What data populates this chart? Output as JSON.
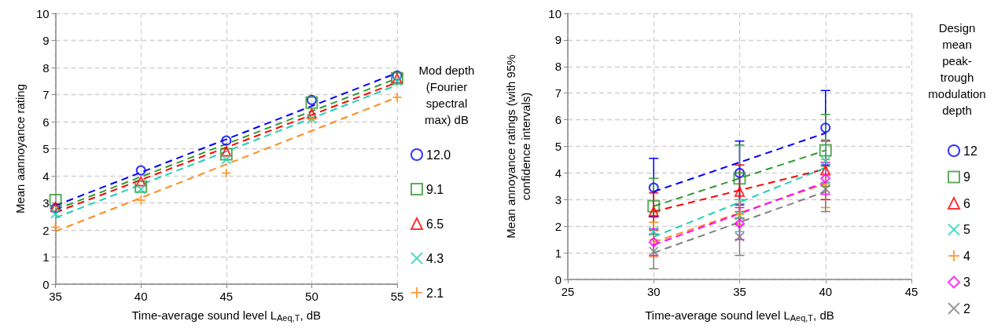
{
  "chart_data": [
    {
      "type": "scatter",
      "xlabel": "Time-average sound level L$_{Aeq,T}$, dB",
      "ylabel": "Mean aannoyance rating",
      "legend_title": "Mod depth (Fourier spectral max) dB",
      "x": [
        35,
        40,
        45,
        50,
        55
      ],
      "xlim": [
        35,
        55
      ],
      "xticks": [
        35,
        40,
        45,
        50,
        55
      ],
      "ylim": [
        0,
        10
      ],
      "yticks": [
        0,
        1,
        2,
        3,
        4,
        5,
        6,
        7,
        8,
        9,
        10
      ],
      "grid": true,
      "legend": "right",
      "series": [
        {
          "name": "12.0",
          "color": "#0000ff",
          "marker": "circle",
          "values": [
            2.8,
            4.2,
            5.3,
            6.8,
            7.7
          ]
        },
        {
          "name": "9.1",
          "color": "#339933",
          "marker": "square",
          "values": [
            3.1,
            3.6,
            4.8,
            6.7,
            7.6
          ]
        },
        {
          "name": "6.5",
          "color": "#ff0000",
          "marker": "triangle",
          "values": [
            2.85,
            3.8,
            4.9,
            6.3,
            7.6
          ]
        },
        {
          "name": "4.3",
          "color": "#1fd1b3",
          "marker": "cross",
          "values": [
            2.6,
            3.5,
            4.6,
            6.1,
            7.5
          ]
        },
        {
          "name": "2.1",
          "color": "#ff8c1a",
          "marker": "plus",
          "values": [
            2.1,
            3.1,
            4.1,
            6.1,
            6.9
          ]
        },
        {
          "type": "line",
          "color": "#0000ff",
          "line_style": "dashed",
          "x": [
            35,
            55
          ],
          "values": [
            2.9,
            7.8
          ]
        },
        {
          "type": "line",
          "color": "#339933",
          "line_style": "dashed",
          "x": [
            35,
            55
          ],
          "values": [
            2.75,
            7.6
          ]
        },
        {
          "type": "line",
          "color": "#ff0000",
          "line_style": "dashed",
          "x": [
            35,
            55
          ],
          "values": [
            2.65,
            7.45
          ]
        },
        {
          "type": "line",
          "color": "#1fd1b3",
          "line_style": "dashed",
          "x": [
            35,
            55
          ],
          "values": [
            2.45,
            7.35
          ]
        },
        {
          "type": "line",
          "color": "#ff8c1a",
          "line_style": "dashed",
          "x": [
            35,
            55
          ],
          "values": [
            1.95,
            6.9
          ]
        }
      ]
    },
    {
      "type": "scatter",
      "xlabel": "Time-average sound level L$_{Aeq,T}$, dB",
      "ylabel": "Mean annoyance ratings (with 95% confidence intervals)",
      "legend_title": "Design mean peak-trough modulation depth",
      "x": [
        30,
        35,
        40
      ],
      "xlim": [
        25,
        45
      ],
      "xticks": [
        25,
        30,
        35,
        40,
        45
      ],
      "ylim": [
        0,
        10
      ],
      "yticks": [
        0,
        1,
        2,
        3,
        4,
        5,
        6,
        7,
        8,
        9,
        10
      ],
      "grid": true,
      "legend": "right",
      "series": [
        {
          "name": "12",
          "color": "#0000ff",
          "marker": "circle",
          "values": [
            3.45,
            4.0,
            5.7
          ],
          "errors": [
            1.1,
            1.2,
            1.4
          ]
        },
        {
          "name": "9",
          "color": "#339933",
          "marker": "square",
          "values": [
            2.75,
            3.8,
            4.85
          ],
          "errors": [
            1.05,
            1.25,
            1.35
          ]
        },
        {
          "name": "6",
          "color": "#ff0000",
          "marker": "triangle",
          "values": [
            2.55,
            3.3,
            4.1
          ],
          "errors": [
            0.7,
            1.0,
            1.1
          ]
        },
        {
          "name": "5",
          "color": "#1fd1b3",
          "marker": "cross",
          "values": [
            1.8,
            2.4,
            4.45
          ],
          "errors": [
            null,
            0.6,
            0.8
          ]
        },
        {
          "name": "4",
          "color": "#ff8c1a",
          "marker": "plus",
          "values": [
            1.5,
            2.45,
            3.6
          ],
          "errors": [
            0.65,
            0.4,
            0.9
          ]
        },
        {
          "name": "3",
          "color": "#ff00ff",
          "marker": "diamond",
          "values": [
            1.4,
            2.1,
            3.8
          ],
          "errors": [
            0.5,
            0.6,
            0.6
          ]
        },
        {
          "name": "2",
          "color": "#808080",
          "marker": "cross",
          "values": [
            1.05,
            1.6,
            3.4
          ],
          "errors": [
            0.65,
            0.7,
            0.85
          ]
        },
        {
          "type": "line",
          "color": "#0000ff",
          "line_style": "dashed",
          "x": [
            30,
            40
          ],
          "values": [
            3.3,
            5.5
          ]
        },
        {
          "type": "line",
          "color": "#339933",
          "line_style": "dashed",
          "x": [
            30,
            40
          ],
          "values": [
            2.75,
            4.85
          ]
        },
        {
          "type": "line",
          "color": "#ff0000",
          "line_style": "dashed",
          "x": [
            30,
            40
          ],
          "values": [
            2.55,
            4.15
          ]
        },
        {
          "type": "line",
          "color": "#1fd1b3",
          "line_style": "dashed",
          "x": [
            30,
            40
          ],
          "values": [
            1.6,
            4.2
          ]
        },
        {
          "type": "line",
          "color": "#ff8c1a",
          "line_style": "dashed",
          "x": [
            30,
            40
          ],
          "values": [
            1.4,
            3.6
          ]
        },
        {
          "type": "line",
          "color": "#ff00ff",
          "line_style": "dashed",
          "x": [
            30,
            40
          ],
          "values": [
            1.3,
            3.65
          ]
        },
        {
          "type": "line",
          "color": "#808080",
          "line_style": "dashed",
          "x": [
            30,
            40
          ],
          "values": [
            1.0,
            3.3
          ]
        }
      ]
    }
  ]
}
